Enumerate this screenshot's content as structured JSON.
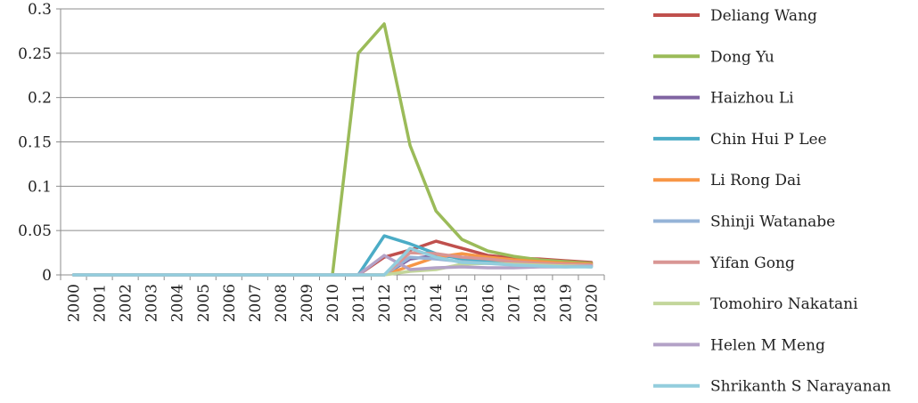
{
  "chart_data": {
    "type": "line",
    "title": "",
    "xlabel": "",
    "ylabel": "",
    "x": [
      "2000",
      "2001",
      "2002",
      "2003",
      "2004",
      "2005",
      "2006",
      "2007",
      "2008",
      "2009",
      "2010",
      "2011",
      "2012",
      "2013",
      "2014",
      "2015",
      "2016",
      "2017",
      "2018",
      "2019",
      "2020"
    ],
    "ylim": [
      0,
      0.3
    ],
    "yticks": [
      0,
      0.05,
      0.1,
      0.15,
      0.2,
      0.25,
      0.3
    ],
    "ytick_labels": [
      "0",
      "0.05",
      "0.1",
      "0.15",
      "0.2",
      "0.25",
      "0.3"
    ],
    "grid": "horizontal",
    "legend_position": "right",
    "series": [
      {
        "name": "Deliang Wang",
        "color": "#c0504d",
        "values": [
          0,
          0,
          0,
          0,
          0,
          0,
          0,
          0,
          0,
          0,
          0,
          0,
          0.02,
          0.028,
          0.038,
          0.03,
          0.022,
          0.019,
          0.018,
          0.016,
          0.014
        ]
      },
      {
        "name": "Dong Yu",
        "color": "#9bbb59",
        "values": [
          0,
          0,
          0,
          0,
          0,
          0,
          0,
          0,
          0,
          0,
          0,
          0.25,
          0.283,
          0.146,
          0.072,
          0.04,
          0.027,
          0.021,
          0.017,
          0.015,
          0.013
        ]
      },
      {
        "name": "Haizhou Li",
        "color": "#8064a2",
        "values": [
          0,
          0,
          0,
          0,
          0,
          0,
          0,
          0,
          0,
          0,
          0,
          0,
          0,
          0.018,
          0.022,
          0.02,
          0.017,
          0.015,
          0.014,
          0.013,
          0.012
        ]
      },
      {
        "name": "Chin Hui P Lee",
        "color": "#4bacc6",
        "values": [
          0,
          0,
          0,
          0,
          0,
          0,
          0,
          0,
          0,
          0,
          0,
          0,
          0.044,
          0.035,
          0.024,
          0.018,
          0.015,
          0.013,
          0.012,
          0.011,
          0.01
        ]
      },
      {
        "name": "Li Rong Dai",
        "color": "#f79646",
        "values": [
          0,
          0,
          0,
          0,
          0,
          0,
          0,
          0,
          0,
          0,
          0,
          0,
          0,
          0.01,
          0.02,
          0.024,
          0.02,
          0.017,
          0.015,
          0.013,
          0.012
        ]
      },
      {
        "name": "Shinji Watanabe",
        "color": "#95b3d7",
        "values": [
          0,
          0,
          0,
          0,
          0,
          0,
          0,
          0,
          0,
          0,
          0,
          0,
          0,
          0.02,
          0.018,
          0.015,
          0.013,
          0.012,
          0.011,
          0.01,
          0.009
        ]
      },
      {
        "name": "Yifan Gong",
        "color": "#d99694",
        "values": [
          0,
          0,
          0,
          0,
          0,
          0,
          0,
          0,
          0,
          0,
          0,
          0,
          0,
          0.025,
          0.024,
          0.02,
          0.018,
          0.015,
          0.013,
          0.012,
          0.011
        ]
      },
      {
        "name": "Tomohiro Nakatani",
        "color": "#c3d69b",
        "values": [
          0,
          0,
          0,
          0,
          0,
          0,
          0,
          0,
          0,
          0,
          0,
          0,
          0,
          0.004,
          0.006,
          0.012,
          0.013,
          0.012,
          0.011,
          0.01,
          0.01
        ]
      },
      {
        "name": "Helen M Meng",
        "color": "#b3a2c7",
        "values": [
          0,
          0,
          0,
          0,
          0,
          0,
          0,
          0,
          0,
          0,
          0,
          0,
          0.022,
          0.006,
          0.008,
          0.009,
          0.008,
          0.008,
          0.009,
          0.009,
          0.01
        ]
      },
      {
        "name": "Shrikanth S Narayanan",
        "color": "#93cddd",
        "values": [
          0,
          0,
          0,
          0,
          0,
          0,
          0,
          0,
          0,
          0,
          0,
          0,
          0,
          0.03,
          0.02,
          0.014,
          0.013,
          0.011,
          0.01,
          0.009,
          0.009
        ]
      }
    ]
  }
}
